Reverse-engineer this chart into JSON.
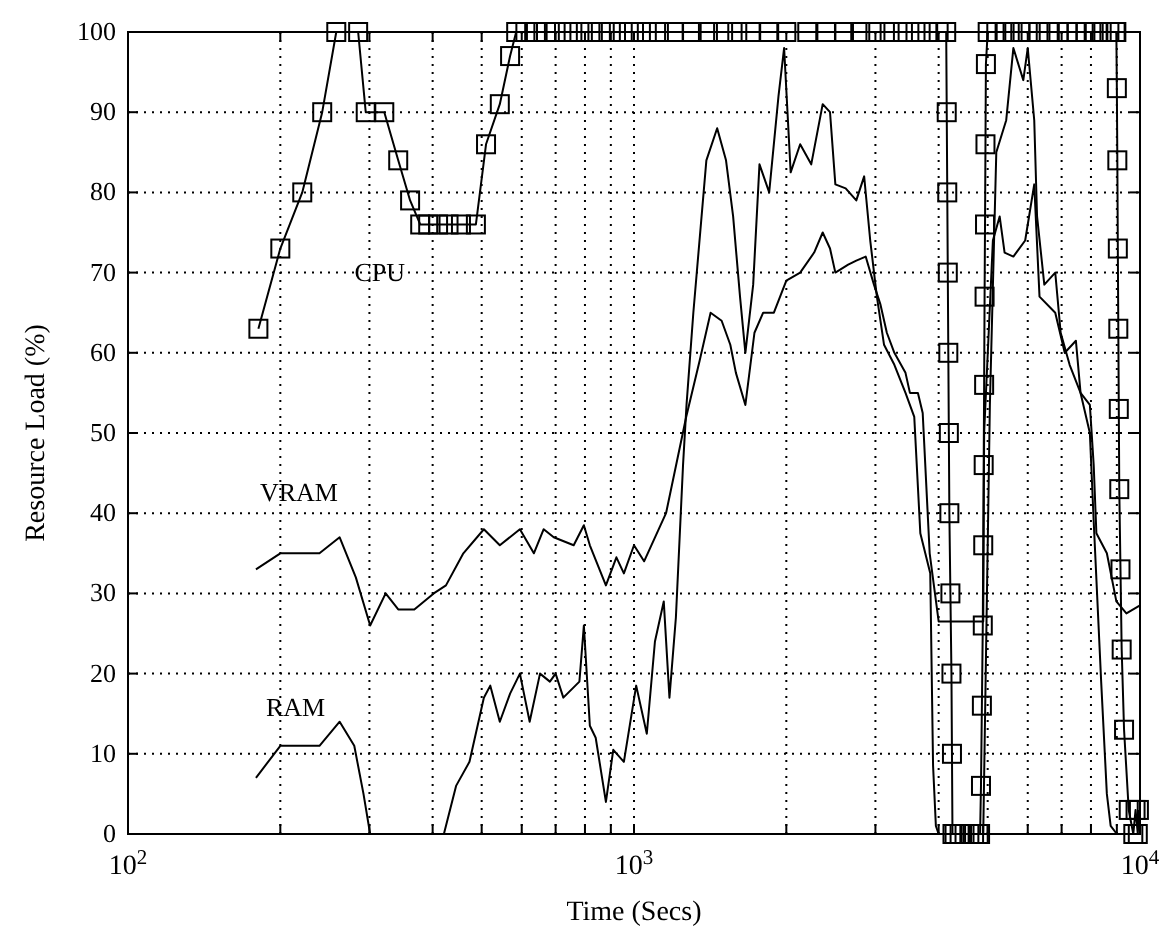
{
  "chart_data": {
    "type": "line",
    "xlabel": "Time (Secs)",
    "ylabel": "Resource Load (%)",
    "log": "x",
    "grid": true,
    "xlim": [
      100,
      10000
    ],
    "ylim": [
      0,
      100
    ],
    "xticks": [
      {
        "value": 100,
        "label": "10$^{2}$"
      },
      {
        "value": 200,
        "label": null
      },
      {
        "value": 300,
        "label": null
      },
      {
        "value": 400,
        "label": null
      },
      {
        "value": 500,
        "label": null
      },
      {
        "value": 600,
        "label": null
      },
      {
        "value": 700,
        "label": null
      },
      {
        "value": 800,
        "label": null
      },
      {
        "value": 900,
        "label": null
      },
      {
        "value": 1000,
        "label": "10$^{3}$"
      },
      {
        "value": 2000,
        "label": null
      },
      {
        "value": 3000,
        "label": null
      },
      {
        "value": 4000,
        "label": null
      },
      {
        "value": 5000,
        "label": null
      },
      {
        "value": 6000,
        "label": null
      },
      {
        "value": 7000,
        "label": null
      },
      {
        "value": 8000,
        "label": null
      },
      {
        "value": 9000,
        "label": null
      },
      {
        "value": 10000,
        "label": "10$^{4}$"
      }
    ],
    "yticks": [
      0,
      10,
      20,
      30,
      40,
      50,
      60,
      70,
      80,
      90,
      100
    ],
    "series": [
      {
        "name": "CPU",
        "color": "#000000",
        "marker": "square",
        "x": [
          181,
          200,
          221,
          242,
          258,
          285,
          295,
          321,
          342,
          361,
          378,
          392,
          410,
          430,
          455,
          487,
          510,
          543,
          569,
          585,
          610,
          640,
          670,
          700,
          740,
          780,
          820,
          860,
          900,
          950,
          1000,
          1060,
          1120,
          1200,
          1300,
          1400,
          1500,
          1600,
          1700,
          1850,
          2000,
          2200,
          2400,
          2600,
          2800,
          3000,
          3200,
          3400,
          3600,
          3800,
          4000,
          4140,
          4150,
          4160,
          4170,
          4180,
          4190,
          4200,
          4220,
          4240,
          4250,
          4260,
          4300,
          4400,
          4500,
          4600,
          4700,
          4800,
          4830,
          4850,
          4870,
          4890,
          4900,
          4910,
          4920,
          4930,
          4940,
          4950,
          4960,
          5000,
          5200,
          5400,
          5600,
          5800,
          6000,
          6300,
          6600,
          6900,
          7200,
          7500,
          7800,
          8100,
          8400,
          8700,
          8950,
          8980,
          9000,
          9020,
          9040,
          9060,
          9080,
          9100,
          9150,
          9200,
          9300,
          9500,
          9700,
          9800,
          9900,
          9950
        ],
        "values": [
          63,
          73,
          80,
          90,
          100,
          100,
          90,
          90,
          84,
          79,
          76,
          76,
          76,
          76,
          76,
          76,
          86,
          91,
          97,
          100,
          100,
          100,
          100,
          100,
          100,
          100,
          100,
          100,
          100,
          100,
          100,
          100,
          100,
          100,
          100,
          100,
          100,
          100,
          100,
          100,
          100,
          100,
          100,
          100,
          100,
          100,
          100,
          100,
          100,
          100,
          100,
          100,
          90,
          80,
          70,
          60,
          50,
          40,
          30,
          20,
          10,
          0,
          0,
          0,
          0,
          0,
          0,
          0,
          0,
          6,
          16,
          26,
          36,
          46,
          56,
          67,
          76,
          86,
          96,
          100,
          100,
          100,
          100,
          100,
          100,
          100,
          100,
          100,
          100,
          100,
          100,
          100,
          100,
          100,
          100,
          100,
          93,
          84,
          73,
          63,
          53,
          43,
          33,
          23,
          13,
          3,
          0,
          3,
          0,
          3
        ]
      },
      {
        "name": "VRAM",
        "color": "#000000",
        "marker": "none",
        "x": [
          179,
          200,
          239,
          262,
          282,
          301,
          323,
          342,
          368,
          402,
          425,
          460,
          505,
          543,
          595,
          634,
          663,
          694,
          760,
          796,
          818,
          880,
          923,
          955,
          1000,
          1047,
          1157,
          1268,
          1348,
          1417,
          1490,
          1550,
          1590,
          1660,
          1730,
          1800,
          1890,
          2000,
          2130,
          2270,
          2360,
          2440,
          2500,
          2650,
          2750,
          2870,
          2980,
          3070,
          3160,
          3270,
          3440,
          3510,
          3640,
          3720,
          3840,
          4000,
          4900,
          4920,
          5120,
          5280,
          5400,
          5620,
          5930,
          6180,
          6330,
          6800,
          7100,
          7470,
          7630,
          7960,
          8100,
          8200,
          8600,
          8980,
          9400,
          10000
        ],
        "values": [
          33,
          35,
          35,
          37,
          32,
          26,
          30,
          28,
          28,
          30,
          31,
          35,
          38,
          36,
          38,
          35,
          38,
          37,
          36,
          38.5,
          36,
          31,
          34.5,
          32.5,
          36,
          34,
          40,
          52,
          59,
          65,
          64,
          61,
          57.5,
          53.5,
          62.5,
          65,
          65,
          69,
          70,
          72.5,
          75,
          73,
          70,
          71,
          71.5,
          72,
          68.5,
          66,
          62.5,
          60,
          57.5,
          55,
          55,
          52.5,
          35,
          26.5,
          26.5,
          50,
          74,
          77,
          72.5,
          72,
          74,
          81,
          67,
          65,
          60,
          61.5,
          55,
          53.5,
          46,
          37.5,
          35,
          29,
          27.5,
          28.5
        ]
      },
      {
        "name": "RAM",
        "color": "#000000",
        "marker": "none",
        "x": [
          179,
          200,
          239,
          262,
          280,
          292,
          301,
          421,
          445,
          473,
          505,
          520,
          543,
          569,
          595,
          622,
          652,
          682,
          700,
          725,
          780,
          796,
          818,
          840,
          880,
          910,
          955,
          1010,
          1060,
          1100,
          1145,
          1175,
          1210,
          1250,
          1270,
          1310,
          1390,
          1460,
          1520,
          1570,
          1620,
          1660,
          1720,
          1770,
          1850,
          1930,
          1980,
          2040,
          2130,
          2240,
          2360,
          2440,
          2500,
          2620,
          2750,
          2850,
          2930,
          3020,
          3120,
          3270,
          3440,
          3580,
          3680,
          3850,
          3900,
          3950,
          4000,
          4900,
          5050,
          5200,
          5440,
          5620,
          5880,
          6000,
          6180,
          6260,
          6470,
          6800,
          6970,
          7260,
          7630,
          7960,
          8100,
          8380,
          8600,
          8750,
          9000,
          10000
        ],
        "values": [
          7,
          11,
          11,
          14,
          11,
          5,
          0,
          0,
          6,
          9,
          17,
          18.5,
          14,
          17.5,
          20,
          14,
          20,
          19,
          20,
          17,
          19,
          26,
          13.5,
          12,
          4,
          10.5,
          9,
          18.5,
          12.5,
          24,
          29,
          17,
          27,
          46,
          53.5,
          65,
          84,
          88,
          84,
          77,
          67,
          60,
          68.5,
          83.5,
          80,
          92,
          98,
          82.5,
          86,
          83.5,
          91,
          90,
          81,
          80.5,
          79,
          82,
          74,
          67,
          61,
          58.5,
          55,
          52,
          37.5,
          32.5,
          8.5,
          1,
          0,
          0,
          53.5,
          85,
          89,
          98,
          94,
          98,
          89,
          77,
          68.5,
          70,
          62.5,
          58.5,
          55,
          50,
          39,
          19,
          5,
          1,
          0,
          0
        ]
      }
    ]
  }
}
